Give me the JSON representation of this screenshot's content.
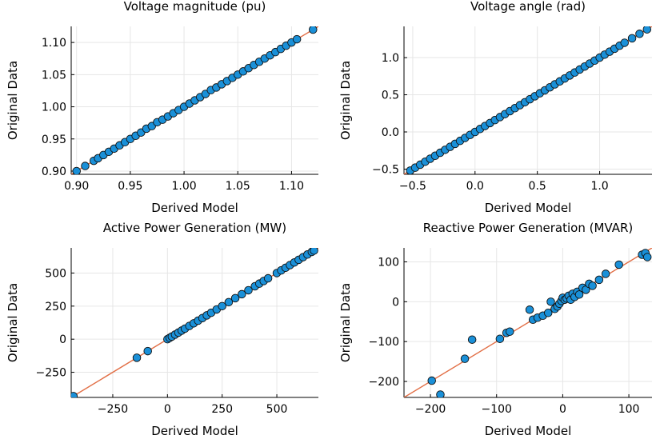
{
  "chart_data": [
    {
      "type": "scatter",
      "title": "Voltage magnitude (pu)",
      "xlabel": "Derived Model",
      "ylabel": "Original Data",
      "xlim": [
        0.895,
        1.125
      ],
      "ylim": [
        0.895,
        1.125
      ],
      "xticks": [
        0.9,
        0.95,
        1.0,
        1.05,
        1.1
      ],
      "xtick_labels": [
        "0.90",
        "0.95",
        "1.00",
        "1.05",
        "1.10"
      ],
      "yticks": [
        0.9,
        0.95,
        1.0,
        1.05,
        1.1
      ],
      "ytick_labels": [
        "0.90",
        "0.95",
        "1.00",
        "1.05",
        "1.10"
      ],
      "grid": true,
      "legend": "none",
      "series": [
        {
          "x": [
            0.9,
            0.908,
            0.916,
            0.92,
            0.925,
            0.93,
            0.935,
            0.94,
            0.945,
            0.95,
            0.955,
            0.96,
            0.965,
            0.97,
            0.975,
            0.98,
            0.985,
            0.99,
            0.995,
            1.0,
            1.005,
            1.01,
            1.015,
            1.02,
            1.025,
            1.03,
            1.035,
            1.04,
            1.045,
            1.05,
            1.055,
            1.06,
            1.065,
            1.07,
            1.075,
            1.08,
            1.085,
            1.09,
            1.095,
            1.1,
            1.105,
            1.12
          ],
          "y": [
            0.9,
            0.908,
            0.916,
            0.92,
            0.925,
            0.93,
            0.935,
            0.94,
            0.945,
            0.95,
            0.955,
            0.96,
            0.966,
            0.97,
            0.976,
            0.98,
            0.985,
            0.99,
            0.995,
            1.0,
            1.005,
            1.01,
            1.015,
            1.02,
            1.026,
            1.03,
            1.035,
            1.04,
            1.045,
            1.05,
            1.055,
            1.06,
            1.065,
            1.07,
            1.075,
            1.08,
            1.085,
            1.09,
            1.095,
            1.1,
            1.105,
            1.12
          ]
        }
      ],
      "reference_line": {
        "x": [
          0.895,
          1.125
        ],
        "y": [
          0.895,
          1.125
        ]
      }
    },
    {
      "type": "scatter",
      "title": "Voltage angle (rad)",
      "xlabel": "Derived Model",
      "ylabel": "Original Data",
      "xlim": [
        -0.57,
        1.42
      ],
      "ylim": [
        -0.57,
        1.42
      ],
      "xticks": [
        -0.5,
        0.0,
        0.5,
        1.0
      ],
      "xtick_labels": [
        "−0.5",
        "0.0",
        "0.5",
        "1.0"
      ],
      "yticks": [
        -0.5,
        0.0,
        0.5,
        1.0
      ],
      "ytick_labels": [
        "−0.5",
        "0.0",
        "0.5",
        "1.0"
      ],
      "grid": true,
      "legend": "none",
      "series": [
        {
          "x": [
            -0.52,
            -0.48,
            -0.44,
            -0.4,
            -0.36,
            -0.32,
            -0.28,
            -0.24,
            -0.2,
            -0.16,
            -0.12,
            -0.08,
            -0.04,
            0.0,
            0.04,
            0.08,
            0.12,
            0.16,
            0.2,
            0.24,
            0.28,
            0.32,
            0.36,
            0.4,
            0.44,
            0.48,
            0.52,
            0.56,
            0.6,
            0.64,
            0.68,
            0.72,
            0.76,
            0.8,
            0.84,
            0.88,
            0.92,
            0.96,
            1.0,
            1.04,
            1.08,
            1.12,
            1.16,
            1.2,
            1.26,
            1.32,
            1.38
          ],
          "y": [
            -0.52,
            -0.48,
            -0.44,
            -0.4,
            -0.36,
            -0.32,
            -0.28,
            -0.24,
            -0.2,
            -0.16,
            -0.12,
            -0.08,
            -0.04,
            0.0,
            0.04,
            0.08,
            0.12,
            0.16,
            0.2,
            0.24,
            0.28,
            0.32,
            0.36,
            0.4,
            0.44,
            0.48,
            0.52,
            0.56,
            0.6,
            0.64,
            0.68,
            0.72,
            0.76,
            0.8,
            0.84,
            0.88,
            0.92,
            0.96,
            1.0,
            1.04,
            1.08,
            1.12,
            1.16,
            1.2,
            1.26,
            1.32,
            1.38
          ]
        }
      ],
      "reference_line": {
        "x": [
          -0.57,
          1.42
        ],
        "y": [
          -0.57,
          1.42
        ]
      }
    },
    {
      "type": "scatter",
      "title": "Active Power Generation (MW)",
      "xlabel": "Derived Model",
      "ylabel": "Original Data",
      "xlim": [
        -440,
        690
      ],
      "ylim": [
        -440,
        690
      ],
      "xticks": [
        -250,
        0,
        250,
        500
      ],
      "xtick_labels": [
        "−250",
        "0",
        "250",
        "500"
      ],
      "yticks": [
        -250,
        0,
        250,
        500
      ],
      "ytick_labels": [
        "−250",
        "0",
        "250",
        "500"
      ],
      "grid": true,
      "legend": "none",
      "series": [
        {
          "x": [
            -430,
            -140,
            -90,
            0,
            10,
            20,
            35,
            50,
            65,
            80,
            100,
            120,
            140,
            160,
            180,
            200,
            225,
            250,
            280,
            310,
            340,
            370,
            400,
            420,
            440,
            460,
            500,
            520,
            540,
            560,
            580,
            600,
            620,
            640,
            660,
            670
          ],
          "y": [
            -430,
            -140,
            -90,
            0,
            10,
            20,
            35,
            50,
            65,
            80,
            100,
            120,
            140,
            160,
            180,
            200,
            225,
            250,
            280,
            310,
            340,
            370,
            400,
            420,
            440,
            460,
            500,
            520,
            540,
            560,
            580,
            600,
            620,
            640,
            660,
            670
          ]
        }
      ],
      "reference_line": {
        "x": [
          -440,
          690
        ],
        "y": [
          -440,
          690
        ]
      }
    },
    {
      "type": "scatter",
      "title": "Reactive Power Generation (MVAR)",
      "xlabel": "Derived Model",
      "ylabel": "Original Data",
      "xlim": [
        -240,
        135
      ],
      "ylim": [
        -240,
        135
      ],
      "xticks": [
        -200,
        -100,
        0,
        100
      ],
      "xtick_labels": [
        "−200",
        "−100",
        "0",
        "100"
      ],
      "yticks": [
        -200,
        -100,
        0,
        100
      ],
      "ytick_labels": [
        "−200",
        "−100",
        "0",
        "100"
      ],
      "grid": true,
      "legend": "none",
      "series": [
        {
          "x": [
            -198,
            -185,
            -148,
            -137,
            -95,
            -85,
            -80,
            -50,
            -45,
            -38,
            -30,
            -22,
            -18,
            -12,
            -8,
            -5,
            -2,
            0,
            3,
            6,
            9,
            12,
            15,
            18,
            22,
            25,
            30,
            35,
            40,
            45,
            55,
            65,
            85,
            120,
            125,
            128
          ],
          "y": [
            -198,
            -233,
            -143,
            -95,
            -93,
            -78,
            -75,
            -20,
            -45,
            -40,
            -35,
            -28,
            0,
            -18,
            -12,
            -5,
            2,
            10,
            5,
            8,
            15,
            5,
            20,
            12,
            25,
            18,
            35,
            30,
            45,
            40,
            55,
            70,
            93,
            118,
            122,
            112
          ]
        }
      ],
      "reference_line": {
        "x": [
          -240,
          135
        ],
        "y": [
          -240,
          135
        ]
      }
    }
  ],
  "colors": {
    "marker_fill": "#1a90d8",
    "marker_stroke": "#111111",
    "reference_line": "#e26f46",
    "grid": "#e6e6e6",
    "axis": "#000000"
  }
}
